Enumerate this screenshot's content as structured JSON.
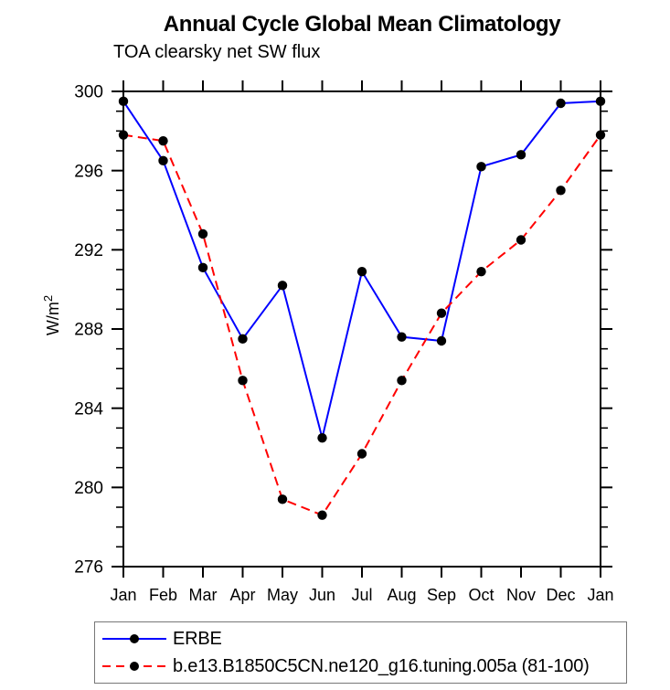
{
  "chart_data": {
    "type": "line",
    "title": "Annual Cycle Global Mean Climatology",
    "subtitle": "TOA clearsky net SW flux",
    "ylabel": "W/m²",
    "ylabel_parts": {
      "base": "W/m",
      "exp": "2"
    },
    "xlabel": "",
    "categories": [
      "Jan",
      "Feb",
      "Mar",
      "Apr",
      "May",
      "Jun",
      "Jul",
      "Aug",
      "Sep",
      "Oct",
      "Nov",
      "Dec",
      "Jan"
    ],
    "ylim": [
      276,
      300
    ],
    "ytick_step": 4,
    "yminor_step": 1,
    "grid": false,
    "legend_position": "bottom-left",
    "axis_color": "#000000",
    "marker_color": "#000000",
    "series": [
      {
        "name": "ERBE",
        "color": "#0000ff",
        "style": "solid",
        "marker": "circle",
        "values": [
          299.5,
          296.5,
          291.1,
          287.5,
          290.2,
          282.5,
          290.9,
          287.6,
          287.4,
          296.2,
          296.8,
          299.4,
          299.5
        ]
      },
      {
        "name": "b.e13.B1850C5CN.ne120_g16.tuning.005a (81-100)",
        "color": "#ff0000",
        "style": "dashed",
        "marker": "circle",
        "values": [
          297.8,
          297.5,
          292.8,
          285.4,
          279.4,
          278.6,
          281.7,
          285.4,
          288.8,
          290.9,
          292.5,
          295.0,
          297.8
        ]
      }
    ]
  }
}
